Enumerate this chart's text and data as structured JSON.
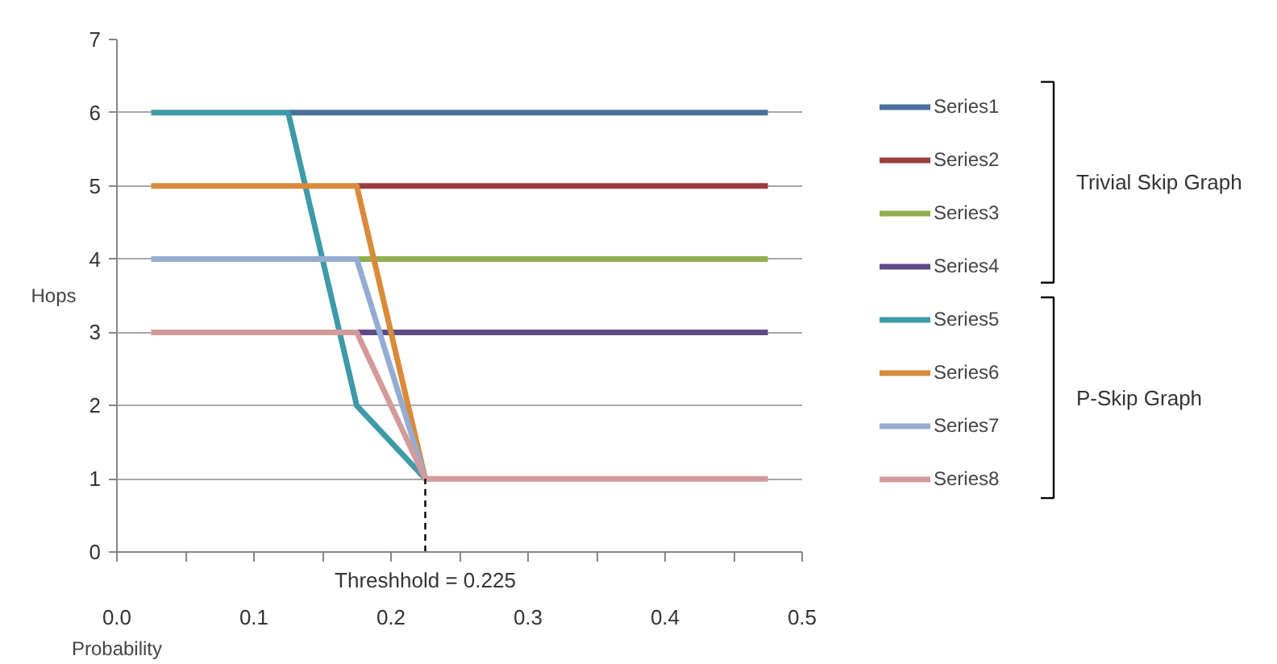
{
  "chart_data": {
    "type": "line",
    "xlabel": "Probability",
    "ylabel": "Hops",
    "x": [
      0.025,
      0.075,
      0.125,
      0.175,
      0.225,
      0.275,
      0.325,
      0.375,
      0.425,
      0.475
    ],
    "series": [
      {
        "name": "Series1",
        "color": "#4a6f9b",
        "values": [
          null,
          null,
          6,
          6,
          6,
          6,
          6,
          6,
          6,
          6
        ]
      },
      {
        "name": "Series2",
        "color": "#9b3d3b",
        "values": [
          null,
          null,
          null,
          5,
          5,
          5,
          5,
          5,
          5,
          5
        ]
      },
      {
        "name": "Series3",
        "color": "#8fb04f",
        "values": [
          null,
          null,
          null,
          4,
          4,
          4,
          4,
          4,
          4,
          4
        ]
      },
      {
        "name": "Series4",
        "color": "#5f4a87",
        "values": [
          null,
          null,
          null,
          3,
          3,
          3,
          3,
          3,
          3,
          3
        ]
      },
      {
        "name": "Series5",
        "color": "#3e9aa8",
        "values": [
          6,
          6,
          6,
          2,
          1,
          null,
          null,
          null,
          null,
          null
        ]
      },
      {
        "name": "Series6",
        "color": "#d98a3a",
        "values": [
          5,
          5,
          5,
          5,
          1,
          null,
          null,
          null,
          null,
          null
        ]
      },
      {
        "name": "Series7",
        "color": "#95acd2",
        "values": [
          4,
          4,
          4,
          4,
          1,
          null,
          null,
          null,
          null,
          null
        ]
      },
      {
        "name": "Series8",
        "color": "#d49a9a",
        "values": [
          3,
          3,
          3,
          3,
          1,
          1,
          1,
          1,
          1,
          1
        ]
      }
    ],
    "xlim": [
      0,
      0.5
    ],
    "xticks": [
      {
        "value": 0,
        "label": "0.0"
      },
      {
        "value": 0.05,
        "label": null
      },
      0.1,
      {
        "value": 0.15,
        "label": null
      },
      0.2,
      {
        "value": 0.25,
        "label": null
      },
      0.3,
      {
        "value": 0.35,
        "label": null
      },
      0.4,
      {
        "value": 0.45,
        "label": null
      },
      0.5
    ],
    "ylim": [
      0,
      7
    ],
    "yticks": [
      0,
      1,
      2,
      3,
      4,
      5,
      6,
      7
    ],
    "grid": "y",
    "legend": "right",
    "marker": "none",
    "line_style": "solid",
    "annotations": [
      {
        "text": "Threshhold = 0.225",
        "x": 0.225,
        "y": 1
      },
      "Trivial Skip Graph",
      "P-Skip Graph"
    ]
  }
}
